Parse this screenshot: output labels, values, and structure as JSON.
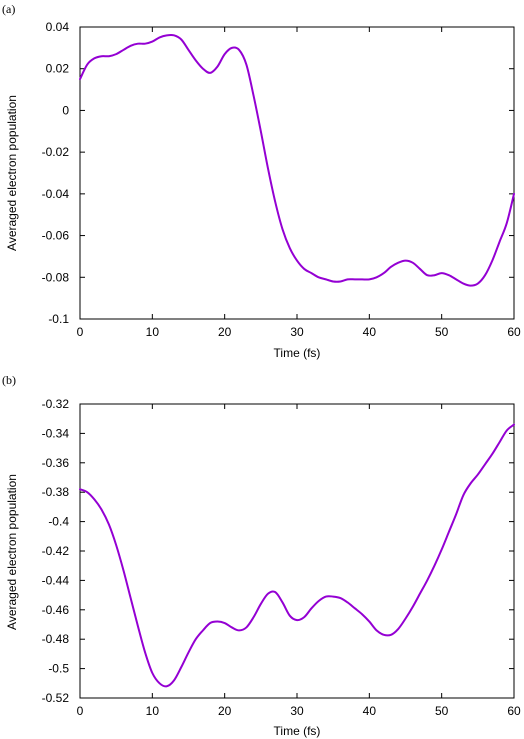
{
  "chart_data": [
    {
      "panel": "(a)",
      "type": "line",
      "title": "",
      "xlabel": "Time (fs)",
      "ylabel": "Averaged electron population",
      "xlim": [
        0,
        60
      ],
      "ylim": [
        -0.1,
        0.04
      ],
      "xticks": [
        0,
        10,
        20,
        30,
        40,
        50,
        60
      ],
      "yticks": [
        -0.1,
        -0.08,
        -0.06,
        -0.04,
        -0.02,
        0,
        0.02,
        0.04
      ],
      "xtick_labels": [
        "0",
        "10",
        "20",
        "30",
        "40",
        "50",
        "60"
      ],
      "ytick_labels": [
        "-0.1",
        "-0.08",
        "-0.06",
        "-0.04",
        "-0.02",
        "0",
        "0.02",
        "0.04"
      ],
      "grid": false,
      "legend": "none",
      "series": [
        {
          "color": "#9400d3",
          "x": [
            0,
            1,
            2,
            3,
            4,
            5,
            6,
            7,
            8,
            9,
            10,
            11,
            12,
            13,
            14,
            15,
            16,
            17,
            18,
            19,
            20,
            21,
            22,
            23,
            24,
            25,
            26,
            27,
            28,
            29,
            30,
            31,
            32,
            33,
            34,
            35,
            36,
            37,
            38,
            39,
            40,
            41,
            42,
            43,
            44,
            45,
            46,
            47,
            48,
            49,
            50,
            51,
            52,
            53,
            54,
            55,
            56,
            57,
            58,
            59,
            60
          ],
          "y": [
            0.015,
            0.022,
            0.025,
            0.026,
            0.026,
            0.027,
            0.029,
            0.031,
            0.032,
            0.032,
            0.033,
            0.035,
            0.036,
            0.036,
            0.034,
            0.029,
            0.024,
            0.02,
            0.018,
            0.021,
            0.027,
            0.03,
            0.029,
            0.022,
            0.007,
            -0.01,
            -0.028,
            -0.044,
            -0.057,
            -0.066,
            -0.072,
            -0.076,
            -0.078,
            -0.08,
            -0.081,
            -0.082,
            -0.082,
            -0.081,
            -0.081,
            -0.081,
            -0.081,
            -0.08,
            -0.078,
            -0.075,
            -0.073,
            -0.072,
            -0.073,
            -0.076,
            -0.079,
            -0.079,
            -0.078,
            -0.079,
            -0.081,
            -0.083,
            -0.084,
            -0.083,
            -0.079,
            -0.072,
            -0.063,
            -0.054,
            -0.04
          ]
        }
      ]
    },
    {
      "panel": "(b)",
      "type": "line",
      "title": "",
      "xlabel": "Time (fs)",
      "ylabel": "Averaged electron population",
      "xlim": [
        0,
        60
      ],
      "ylim": [
        -0.52,
        -0.32
      ],
      "xticks": [
        0,
        10,
        20,
        30,
        40,
        50,
        60
      ],
      "yticks": [
        -0.52,
        -0.5,
        -0.48,
        -0.46,
        -0.44,
        -0.42,
        -0.4,
        -0.38,
        -0.36,
        -0.34,
        -0.32
      ],
      "xtick_labels": [
        "0",
        "10",
        "20",
        "30",
        "40",
        "50",
        "60"
      ],
      "ytick_labels": [
        "-0.52",
        "-0.5",
        "-0.48",
        "-0.46",
        "-0.44",
        "-0.42",
        "-0.4",
        "-0.38",
        "-0.36",
        "-0.34",
        "-0.32"
      ],
      "grid": false,
      "legend": "none",
      "series": [
        {
          "color": "#9400d3",
          "x": [
            0,
            1,
            2,
            3,
            4,
            5,
            6,
            7,
            8,
            9,
            10,
            11,
            12,
            13,
            14,
            15,
            16,
            17,
            18,
            19,
            20,
            21,
            22,
            23,
            24,
            25,
            26,
            27,
            28,
            29,
            30,
            31,
            32,
            33,
            34,
            35,
            36,
            37,
            38,
            39,
            40,
            41,
            42,
            43,
            44,
            45,
            46,
            47,
            48,
            49,
            50,
            51,
            52,
            53,
            54,
            55,
            56,
            57,
            58,
            59,
            60
          ],
          "y": [
            -0.378,
            -0.38,
            -0.385,
            -0.392,
            -0.402,
            -0.416,
            -0.433,
            -0.452,
            -0.471,
            -0.489,
            -0.503,
            -0.51,
            -0.512,
            -0.508,
            -0.499,
            -0.489,
            -0.48,
            -0.474,
            -0.469,
            -0.468,
            -0.469,
            -0.472,
            -0.474,
            -0.472,
            -0.465,
            -0.456,
            -0.449,
            -0.448,
            -0.455,
            -0.464,
            -0.467,
            -0.465,
            -0.459,
            -0.454,
            -0.451,
            -0.451,
            -0.452,
            -0.455,
            -0.459,
            -0.463,
            -0.468,
            -0.474,
            -0.477,
            -0.477,
            -0.473,
            -0.466,
            -0.458,
            -0.449,
            -0.44,
            -0.43,
            -0.419,
            -0.407,
            -0.395,
            -0.382,
            -0.374,
            -0.368,
            -0.361,
            -0.354,
            -0.346,
            -0.338,
            -0.334
          ]
        }
      ]
    }
  ]
}
